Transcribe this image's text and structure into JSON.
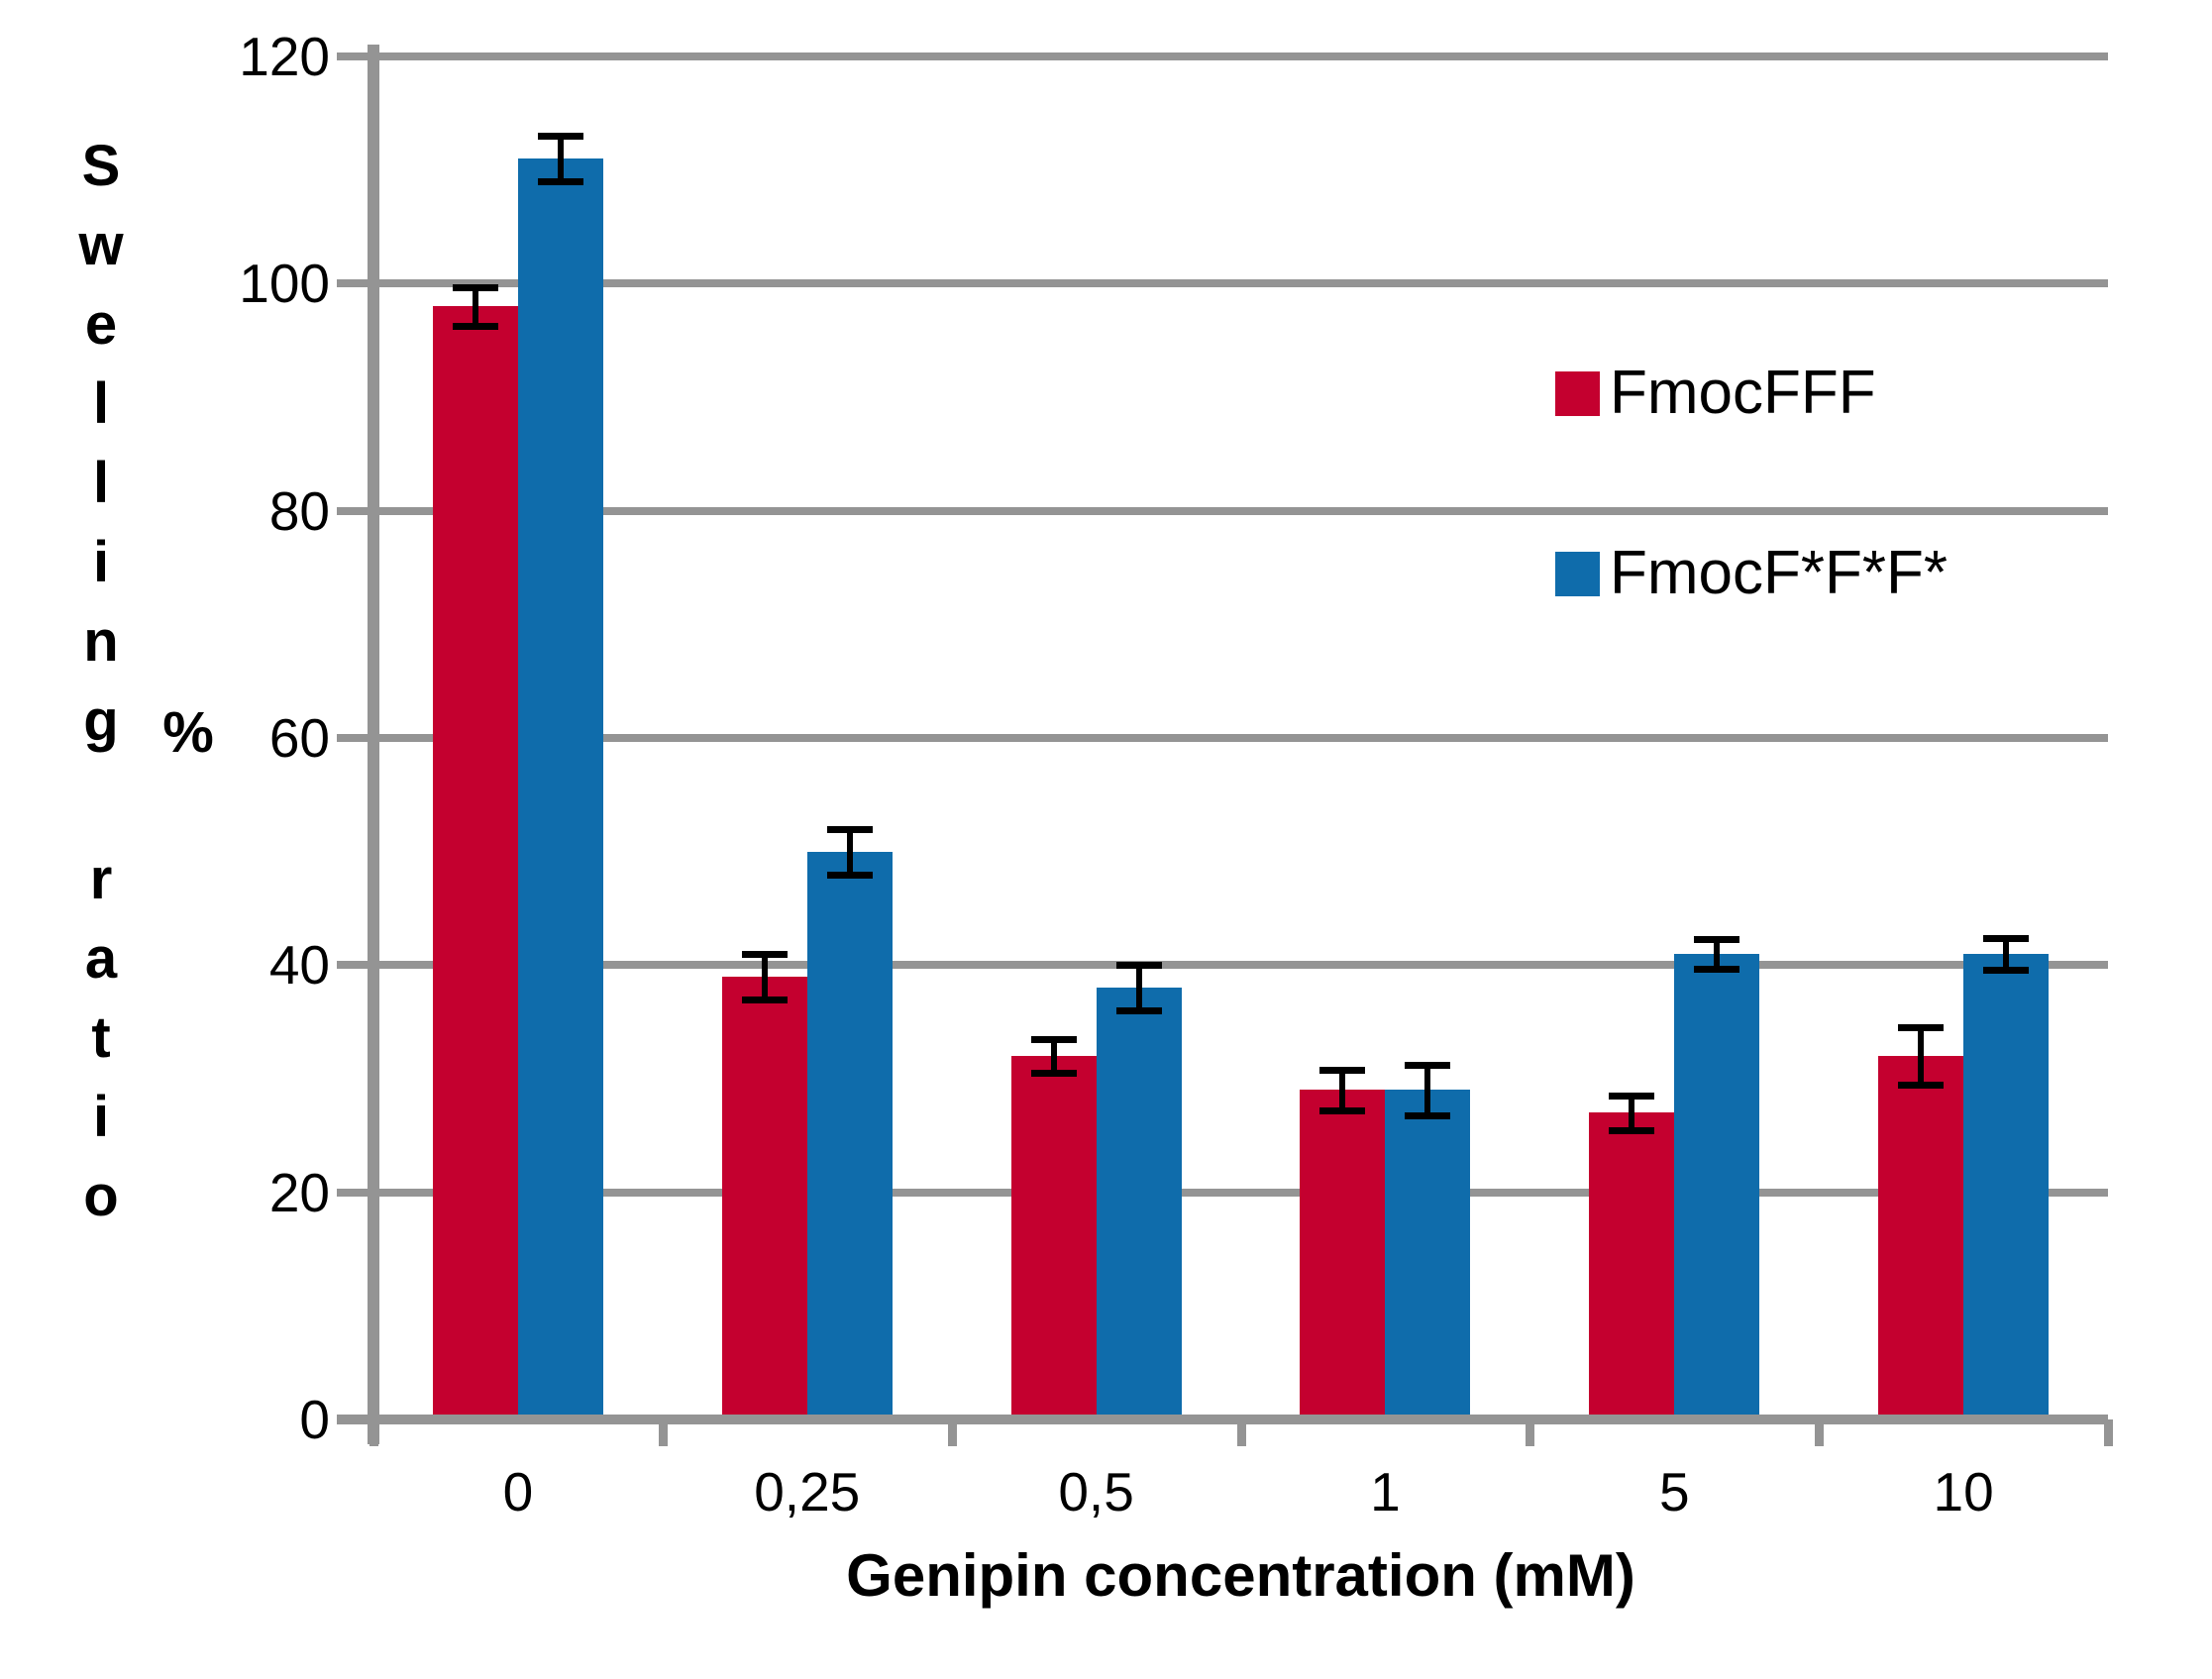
{
  "chart_data": {
    "type": "bar",
    "title": "",
    "xlabel": "Genipin concentration (mM)",
    "ylabel": "Swelling ratio",
    "ylabel_unit": "%",
    "categories": [
      "0",
      "0,25",
      "0,5",
      "1",
      "5",
      "10"
    ],
    "series": [
      {
        "name": "FmocFFF",
        "color": "#C4002F",
        "values": [
          98,
          39,
          32,
          29,
          27,
          32
        ],
        "errors": [
          1.7,
          2.0,
          1.5,
          1.8,
          1.5,
          2.5
        ]
      },
      {
        "name": "FmocF*F*F*",
        "color": "#0F6CAB",
        "values": [
          111,
          50,
          38,
          29,
          41,
          41
        ],
        "errors": [
          2.0,
          2.0,
          2.0,
          2.2,
          1.3,
          1.4
        ]
      }
    ],
    "ylim": [
      0,
      120
    ],
    "yticks": [
      0,
      20,
      40,
      60,
      80,
      100,
      120
    ],
    "grid": true,
    "legend_position": "upper-right-inside"
  },
  "colors": {
    "grid": "#949494",
    "axis": "#949494",
    "error_bar": "#000000",
    "background": "#FFFFFF",
    "text": "#000000"
  }
}
